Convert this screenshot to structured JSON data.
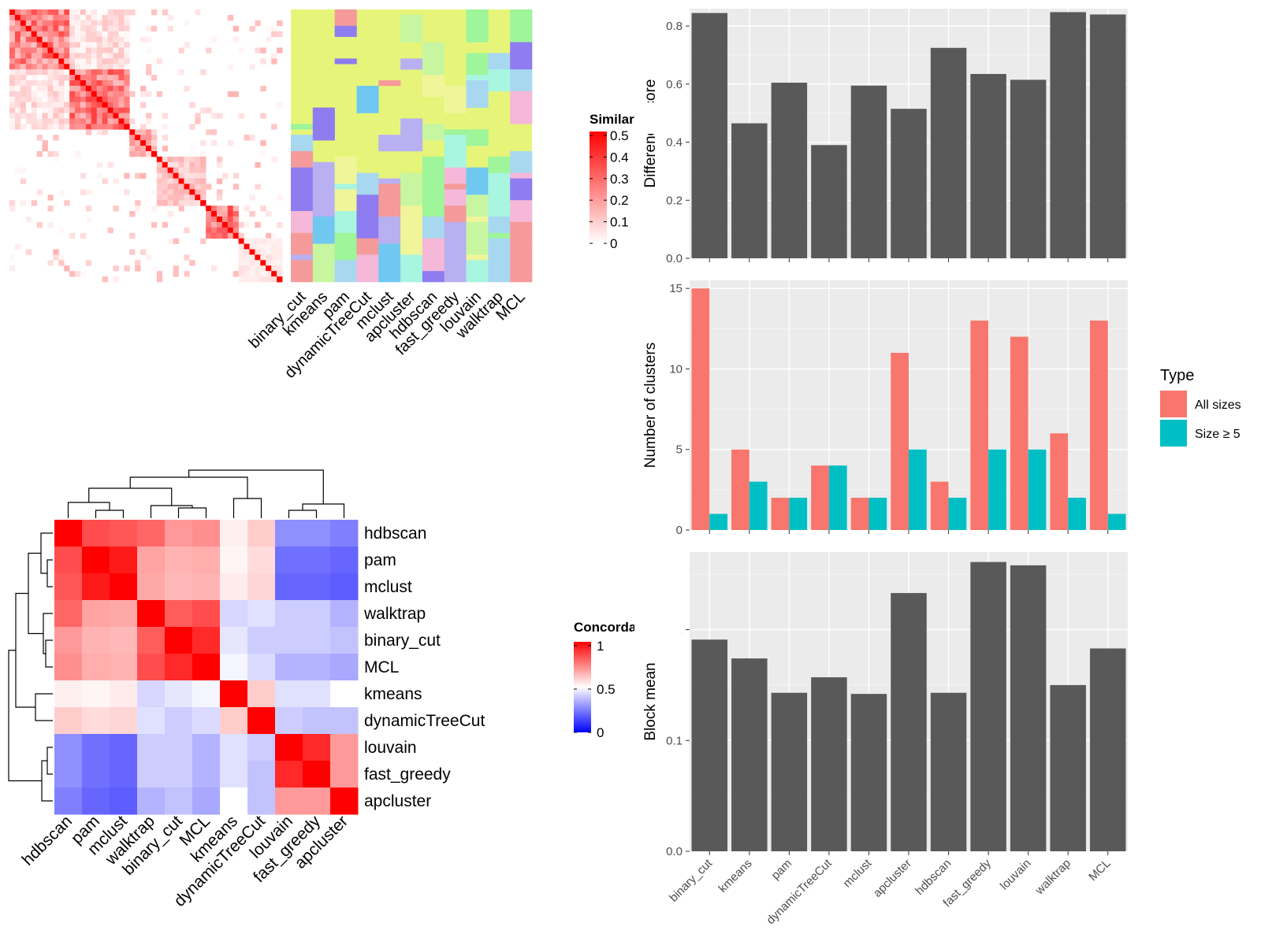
{
  "chart_data": [
    {
      "type": "heatmap",
      "panel": "similarity-heatmap",
      "legend_title": "Similarity",
      "legend_ticks": [
        "0.5",
        "0.4",
        "0.3",
        "0.2",
        "0.1",
        "0"
      ],
      "scale": {
        "low": 0,
        "high": 0.5,
        "low_color": "#ffffff",
        "high_color": "#ff0000"
      },
      "column_labels": [
        "binary_cut",
        "kmeans",
        "pam",
        "dynamicTreeCut",
        "mclust",
        "apcluster",
        "hdbscan",
        "fast_greedy",
        "louvain",
        "walktrap",
        "MCL"
      ],
      "n_terms": 50,
      "blocks": [
        {
          "start": 0,
          "end": 11,
          "within": 0.26
        },
        {
          "start": 11,
          "end": 22,
          "within": 0.28
        },
        {
          "start": 22,
          "end": 27,
          "within": 0.16
        },
        {
          "start": 27,
          "end": 36,
          "within": 0.12
        },
        {
          "start": 36,
          "end": 42,
          "within": 0.3
        },
        {
          "start": 42,
          "end": 50,
          "within": 0.05
        }
      ],
      "background_color": "#e6f57a",
      "cluster_palette": [
        "#a8f5e0",
        "#9ef59a",
        "#a8d8f0",
        "#8e7cf0",
        "#f5b8d8",
        "#f59a9a",
        "#b8b0f0",
        "#70c8f0",
        "#c8f5a0",
        "#f0f59a"
      ]
    },
    {
      "type": "heatmap",
      "panel": "concordance-heatmap",
      "legend_title": "Concordance",
      "legend_ticks": [
        "1",
        "0.5",
        "0"
      ],
      "scale": {
        "low": 0,
        "mid": 0.5,
        "high": 1,
        "low_color": "#0000ff",
        "mid_color": "#ffffff",
        "high_color": "#ff0000"
      },
      "row_labels": [
        "hdbscan",
        "pam",
        "mclust",
        "walktrap",
        "binary_cut",
        "MCL",
        "kmeans",
        "dynamicTreeCut",
        "louvain",
        "fast_greedy",
        "apcluster"
      ],
      "column_labels": [
        "hdbscan",
        "pam",
        "mclust",
        "walktrap",
        "binary_cut",
        "MCL",
        "kmeans",
        "dynamicTreeCut",
        "louvain",
        "fast_greedy",
        "apcluster"
      ],
      "values": [
        [
          1.0,
          0.85,
          0.83,
          0.8,
          0.7,
          0.72,
          0.53,
          0.6,
          0.28,
          0.28,
          0.25
        ],
        [
          0.85,
          1.0,
          0.95,
          0.68,
          0.65,
          0.66,
          0.52,
          0.57,
          0.22,
          0.22,
          0.2
        ],
        [
          0.83,
          0.95,
          1.0,
          0.67,
          0.64,
          0.65,
          0.54,
          0.58,
          0.2,
          0.2,
          0.18
        ],
        [
          0.8,
          0.68,
          0.67,
          1.0,
          0.82,
          0.85,
          0.42,
          0.44,
          0.4,
          0.4,
          0.35
        ],
        [
          0.7,
          0.65,
          0.64,
          0.82,
          1.0,
          0.92,
          0.45,
          0.4,
          0.4,
          0.4,
          0.38
        ],
        [
          0.72,
          0.66,
          0.65,
          0.85,
          0.92,
          1.0,
          0.48,
          0.43,
          0.35,
          0.35,
          0.33
        ],
        [
          0.53,
          0.52,
          0.54,
          0.42,
          0.45,
          0.48,
          1.0,
          0.6,
          0.44,
          0.44,
          0.5
        ],
        [
          0.6,
          0.57,
          0.58,
          0.44,
          0.4,
          0.43,
          0.6,
          1.0,
          0.4,
          0.38,
          0.38
        ],
        [
          0.28,
          0.22,
          0.2,
          0.4,
          0.4,
          0.35,
          0.44,
          0.4,
          1.0,
          0.92,
          0.7
        ],
        [
          0.28,
          0.22,
          0.2,
          0.4,
          0.4,
          0.35,
          0.44,
          0.38,
          0.92,
          1.0,
          0.7
        ],
        [
          0.25,
          0.2,
          0.18,
          0.35,
          0.38,
          0.33,
          0.5,
          0.38,
          0.7,
          0.7,
          1.0
        ]
      ]
    },
    {
      "type": "bar",
      "panel": "difference-score",
      "categories": [
        "binary_cut",
        "kmeans",
        "pam",
        "dynamicTreeCut",
        "mclust",
        "apcluster",
        "hdbscan",
        "fast_greedy",
        "louvain",
        "walktrap",
        "MCL"
      ],
      "values": [
        0.845,
        0.465,
        0.605,
        0.39,
        0.595,
        0.515,
        0.725,
        0.635,
        0.615,
        0.848,
        0.84
      ],
      "ylabel": "Difference score",
      "ylim": [
        0,
        0.86
      ],
      "yticks": [
        0.0,
        0.2,
        0.4,
        0.6,
        0.8
      ],
      "bar_color": "#595959",
      "grid": true
    },
    {
      "type": "bar",
      "panel": "number-of-clusters",
      "categories": [
        "binary_cut",
        "kmeans",
        "pam",
        "dynamicTreeCut",
        "mclust",
        "apcluster",
        "hdbscan",
        "fast_greedy",
        "louvain",
        "walktrap",
        "MCL"
      ],
      "series": [
        {
          "name": "All sizes",
          "values": [
            15,
            5,
            2,
            4,
            2,
            11,
            3,
            13,
            12,
            6,
            13
          ],
          "color": "#f8766d"
        },
        {
          "name": "Size ≥ 5",
          "values": [
            1,
            3,
            2,
            4,
            2,
            5,
            2,
            5,
            5,
            2,
            1
          ],
          "color": "#00bfc4"
        }
      ],
      "ylabel": "Number of clusters",
      "ylim": [
        0,
        15.5
      ],
      "yticks": [
        0,
        5,
        10,
        15
      ],
      "legend_title": "Type",
      "legend_placement": "right",
      "grid": true
    },
    {
      "type": "bar",
      "panel": "block-mean",
      "categories": [
        "binary_cut",
        "kmeans",
        "pam",
        "dynamicTreeCut",
        "mclust",
        "apcluster",
        "hdbscan",
        "fast_greedy",
        "louvain",
        "walktrap",
        "MCL"
      ],
      "values": [
        0.191,
        0.174,
        0.143,
        0.157,
        0.142,
        0.233,
        0.143,
        0.261,
        0.258,
        0.15,
        0.183
      ],
      "ylabel": "Block mean",
      "ylim": [
        0,
        0.27
      ],
      "yticks": [
        0.0,
        0.1,
        0.2
      ],
      "bar_color": "#595959",
      "grid": true
    }
  ]
}
